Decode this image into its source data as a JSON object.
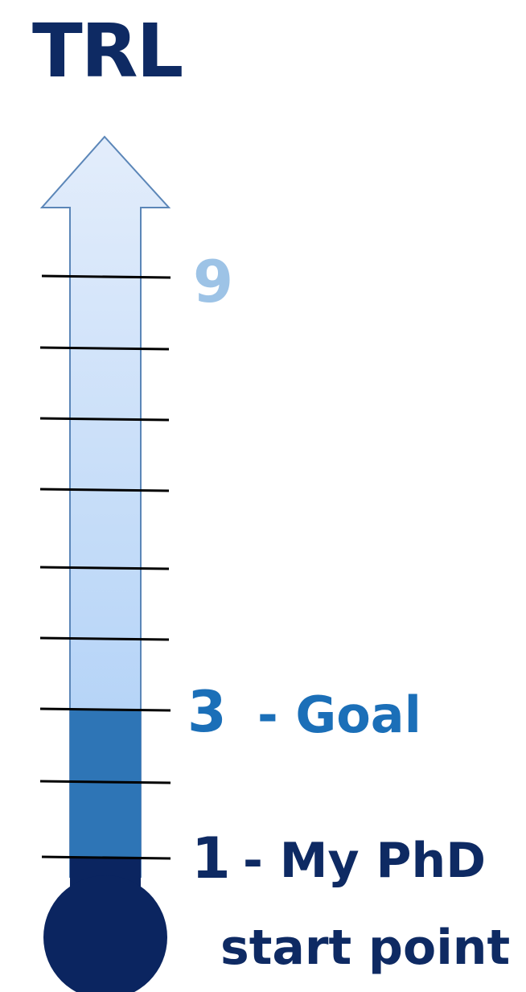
{
  "title": "TRL",
  "levels": {
    "top": "9",
    "goal_number": "3",
    "goal_text": "- Goal",
    "start_number": "1",
    "start_text_line1": "- My PhD",
    "start_text_line2": "start point"
  },
  "scale": {
    "tick_count": 9,
    "current_level": 1,
    "goal_level": 3,
    "max_level": 9
  },
  "colors": {
    "title": "#0e2a63",
    "level9": "#9dc3e6",
    "goal": "#1b6fb8",
    "start": "#0e2a63",
    "bulb": "#0b2560",
    "goal_fill": "#2e75b6",
    "arrow_top": "#e1ecfb",
    "arrow_bottom": "#a9cdf6",
    "arrow_stroke": "#5b86b8"
  }
}
